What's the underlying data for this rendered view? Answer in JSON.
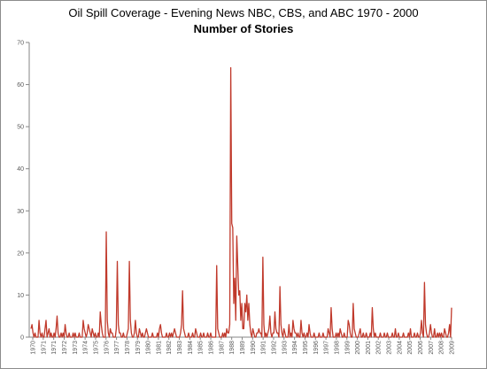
{
  "chart_data": {
    "type": "line",
    "title": "Oil Spill Coverage - Evening News NBC, CBS, and ABC  1970 - 2000",
    "subtitle": "Number of Stories",
    "xlabel": "",
    "ylabel": "",
    "ylim": [
      0,
      70
    ],
    "yticks": [
      0,
      10,
      20,
      30,
      40,
      50,
      60,
      70
    ],
    "grid": false,
    "legend": "none",
    "series_color": "#c0392b",
    "x_tick_labels": [
      "1970",
      "1971",
      "1971",
      "1972",
      "1973",
      "1974",
      "1975",
      "1976",
      "1977",
      "1978",
      "1979",
      "1980",
      "1981",
      "1982",
      "1983",
      "1984",
      "1985",
      "1986",
      "1987",
      "1988",
      "1989",
      "1990",
      "1991",
      "1992",
      "1993",
      "1994",
      "1995",
      "1996",
      "1997",
      "1998",
      "1999",
      "2000",
      "2001",
      "2002",
      "2003",
      "2004",
      "2005",
      "2006",
      "2007",
      "2008",
      "2009"
    ],
    "series": [
      {
        "values": [
          2,
          3,
          1,
          0,
          1,
          0,
          0,
          0,
          4,
          1,
          0,
          1,
          0,
          0,
          2,
          4,
          0,
          1,
          2,
          0,
          1,
          0,
          0,
          1,
          0,
          2,
          5,
          1,
          0,
          0,
          1,
          0,
          1,
          0,
          3,
          1,
          0,
          0,
          1,
          0,
          0,
          0,
          1,
          0,
          1,
          0,
          0,
          0,
          1,
          0,
          0,
          0,
          4,
          2,
          1,
          0,
          1,
          3,
          2,
          1,
          0,
          2,
          1,
          0,
          1,
          0,
          0,
          1,
          0,
          6,
          3,
          1,
          0,
          0,
          0,
          25,
          4,
          1,
          0,
          2,
          1,
          1,
          0,
          0,
          0,
          2,
          18,
          3,
          1,
          1,
          0,
          0,
          1,
          0,
          0,
          0,
          1,
          2,
          18,
          4,
          1,
          0,
          0,
          1,
          4,
          1,
          0,
          0,
          2,
          1,
          0,
          1,
          0,
          0,
          1,
          2,
          1,
          0,
          0,
          0,
          0,
          1,
          0,
          0,
          0,
          0,
          1,
          0,
          2,
          3,
          1,
          0,
          0,
          0,
          0,
          1,
          0,
          0,
          1,
          0,
          1,
          0,
          1,
          2,
          1,
          0,
          0,
          0,
          0,
          1,
          3,
          11,
          2,
          1,
          0,
          0,
          0,
          1,
          0,
          0,
          0,
          1,
          0,
          0,
          2,
          1,
          0,
          0,
          0,
          1,
          0,
          0,
          1,
          0,
          0,
          0,
          1,
          0,
          0,
          1,
          0,
          0,
          0,
          0,
          0,
          17,
          2,
          1,
          0,
          0,
          0,
          1,
          0,
          1,
          0,
          2,
          1,
          1,
          3,
          64,
          27,
          26,
          8,
          14,
          4,
          24,
          17,
          10,
          11,
          4,
          8,
          2,
          2,
          8,
          6,
          10,
          4,
          8,
          3,
          1,
          0,
          2,
          1,
          0,
          0,
          1,
          1,
          2,
          1,
          1,
          0,
          19,
          3,
          0,
          1,
          0,
          1,
          2,
          5,
          1,
          0,
          1,
          1,
          6,
          2,
          1,
          1,
          0,
          12,
          3,
          1,
          0,
          2,
          1,
          0,
          0,
          0,
          3,
          0,
          1,
          0,
          4,
          2,
          1,
          1,
          0,
          1,
          0,
          0,
          4,
          1,
          0,
          1,
          0,
          0,
          1,
          0,
          3,
          1,
          0,
          0,
          0,
          1,
          0,
          0,
          0,
          0,
          1,
          0,
          0,
          0,
          1,
          0,
          0,
          0,
          0,
          2,
          1,
          0,
          7,
          2,
          0,
          0,
          0,
          1,
          0,
          1,
          0,
          2,
          1,
          0,
          0,
          1,
          0,
          0,
          0,
          4,
          3,
          1,
          0,
          0,
          8,
          2,
          1,
          0,
          0,
          0,
          1,
          2,
          0,
          0,
          1,
          0,
          0,
          1,
          0,
          0,
          0,
          1,
          0,
          7,
          2,
          0,
          1,
          0,
          0,
          0,
          0,
          1,
          0,
          0,
          0,
          1,
          0,
          0,
          1,
          0,
          0,
          0,
          0,
          1,
          0,
          0,
          2,
          0,
          0,
          1,
          0,
          0,
          0,
          0,
          1,
          0,
          0,
          0,
          0,
          1,
          0,
          2,
          0,
          0,
          0,
          1,
          0,
          0,
          1,
          0,
          0,
          1,
          4,
          1,
          0,
          13,
          3,
          1,
          0,
          0,
          1,
          3,
          1,
          0,
          0,
          2,
          0,
          0,
          1,
          0,
          1,
          0,
          1,
          0,
          0,
          2,
          1,
          0,
          0,
          1,
          3,
          0,
          7
        ]
      }
    ]
  }
}
